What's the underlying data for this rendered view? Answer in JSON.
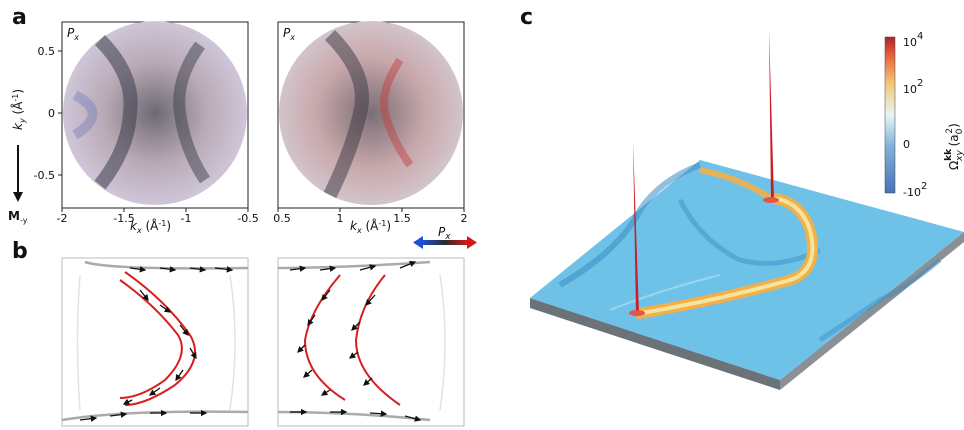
{
  "panels": {
    "a": {
      "letter": "a",
      "left_tag": "P",
      "left_tag_sub": "x",
      "right_tag": "P",
      "right_tag_sub": "x",
      "ylabel": "k",
      "ylabel_sub": "y",
      "ylabel_unit": " (Å",
      "ylabel_unit_sup": "-1",
      "ylabel_unit_end": ")",
      "yticks": [
        "0.5",
        "0",
        "-0.5"
      ],
      "left_xticks": [
        "-2",
        "-1.5",
        "-1",
        "-0.5"
      ],
      "right_xticks": [
        "0.5",
        "1",
        "1.5",
        "2"
      ],
      "xlabel": "k",
      "xlabel_sub": "x",
      "xlabel_unit": " (Å",
      "xlabel_unit_sup": "-1",
      "xlabel_unit_end": ")",
      "direction_label": "M",
      "direction_sub": "-y",
      "polarization_label": "P",
      "polarization_sub": "x"
    },
    "b": {
      "letter": "b"
    },
    "c": {
      "letter": "c",
      "colorbar_ticks": [
        "10",
        "10",
        "0",
        "-10"
      ],
      "colorbar_tick_sups": [
        "4",
        "2",
        "",
        "2"
      ],
      "colorbar_label": "Ω",
      "colorbar_label_sup": "kk",
      "colorbar_label_sub": "xy",
      "colorbar_label_unit": " (a",
      "colorbar_label_unit_sub": "0",
      "colorbar_label_unit_sup": "2",
      "colorbar_label_unit_end": ")",
      "colors": {
        "high": "#c0392b",
        "mid_warm": "#f5c77a",
        "zero": "#e9f4f6",
        "low": "#4a8fc9",
        "surface": "#6ec2e8",
        "slab_side": "#7b8288"
      }
    }
  }
}
